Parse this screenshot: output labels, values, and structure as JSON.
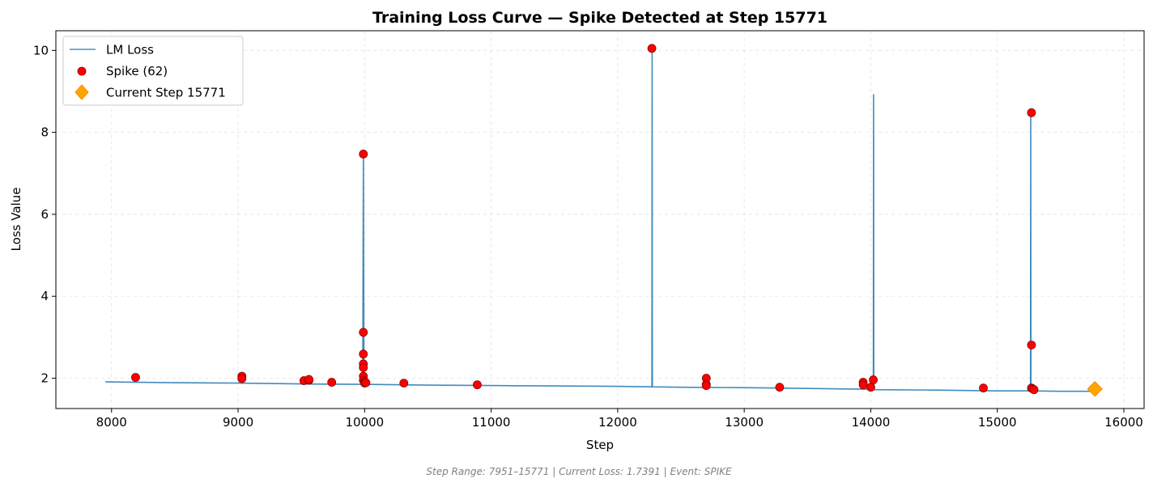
{
  "chart_data": {
    "type": "line",
    "title": "Training Loss Curve — Spike Detected at Step 15771",
    "xlabel": "Step",
    "ylabel": "Loss Value",
    "xlim": [
      7560,
      16160
    ],
    "ylim": [
      1.26,
      10.48
    ],
    "xticks": [
      8000,
      9000,
      10000,
      11000,
      12000,
      13000,
      14000,
      15000,
      16000
    ],
    "yticks": [
      2,
      4,
      6,
      8,
      10
    ],
    "grid": true,
    "legend_position": "top-left",
    "footer": "Step Range: 7951–15771 | Current Loss: 1.7391 | Event: SPIKE",
    "series": [
      {
        "name": "LM Loss",
        "kind": "line",
        "color": "#1f77b4",
        "x": [
          7951,
          8500,
          9000,
          9500,
          9985,
          9990,
          9995,
          10000,
          10500,
          11000,
          11500,
          12000,
          12270,
          12272,
          12274,
          12276,
          12500,
          13000,
          13500,
          14000,
          14020,
          14022,
          14024,
          14030,
          14500,
          15000,
          15262,
          15264,
          15266,
          15270,
          15500,
          15771
        ],
        "y": [
          1.91,
          1.89,
          1.88,
          1.86,
          1.85,
          7.47,
          1.85,
          1.85,
          1.83,
          1.82,
          1.81,
          1.8,
          1.79,
          10.05,
          1.79,
          1.79,
          1.78,
          1.77,
          1.75,
          1.73,
          1.72,
          8.92,
          1.72,
          1.72,
          1.71,
          1.69,
          1.69,
          8.48,
          1.69,
          1.69,
          1.68,
          1.68
        ]
      },
      {
        "name": "Spike (62)",
        "kind": "scatter",
        "color": "#ff0000",
        "edge_color": "#8b0000",
        "x": [
          8190,
          9030,
          9030,
          9520,
          9560,
          9560,
          9740,
          9990,
          9990,
          9990,
          9990,
          9990,
          9990,
          9990,
          10000,
          10000,
          10010,
          10310,
          10890,
          12270,
          12700,
          12700,
          12700,
          13280,
          13940,
          13940,
          14000,
          14020,
          14890,
          15270,
          15270,
          15270,
          15280,
          15290
        ],
        "y": [
          2.02,
          2.05,
          1.99,
          1.94,
          1.95,
          1.97,
          1.9,
          7.47,
          3.12,
          2.59,
          2.35,
          2.26,
          2.05,
          1.95,
          1.92,
          1.88,
          1.89,
          1.88,
          1.84,
          10.05,
          2.0,
          1.85,
          1.82,
          1.78,
          1.9,
          1.84,
          1.78,
          1.96,
          1.76,
          8.48,
          2.81,
          1.76,
          1.74,
          1.72
        ]
      },
      {
        "name": "Current Step 15771",
        "kind": "marker",
        "color": "#ffa500",
        "x": [
          15771
        ],
        "y": [
          1.7391
        ]
      }
    ]
  }
}
